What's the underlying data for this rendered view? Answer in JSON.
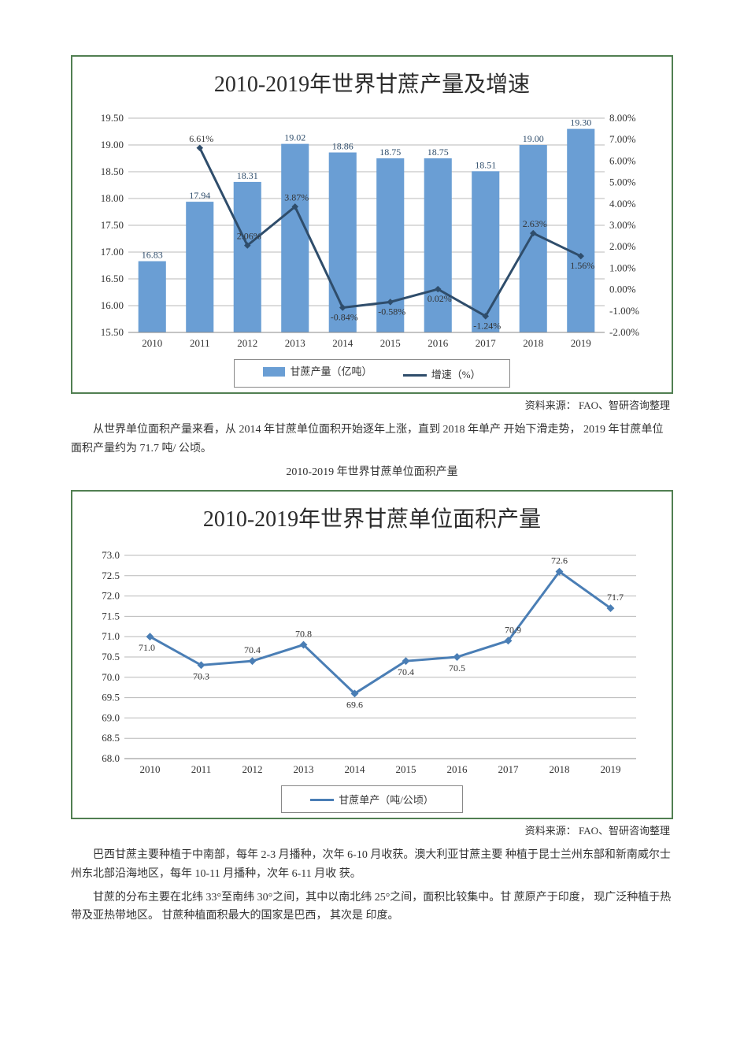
{
  "source_label": "资料来源：",
  "source_value": "FAO、智研咨询整理",
  "chart1": {
    "type": "bar+line",
    "title": "2010-2019年世界甘蔗产量及增速",
    "title_fontsize": 28,
    "border_color": "#517f52",
    "background_color": "#ffffff",
    "grid_color": "#b8b8b8",
    "categories": [
      "2010",
      "2011",
      "2012",
      "2013",
      "2014",
      "2015",
      "2016",
      "2017",
      "2018",
      "2019"
    ],
    "y_left": {
      "min": 15.5,
      "max": 19.5,
      "step": 0.5,
      "label": null,
      "fontsize": 13
    },
    "y_right": {
      "min": -2.0,
      "max": 8.0,
      "step": 1.0,
      "suffix": "%",
      "fontsize": 13
    },
    "bars": {
      "label": "甘蔗产量（亿吨）",
      "color": "#6a9ed4",
      "width": 0.58,
      "values": [
        16.83,
        17.94,
        18.31,
        19.02,
        18.86,
        18.75,
        18.75,
        18.51,
        19.0,
        19.3
      ],
      "data_labels": [
        "16.83",
        "17.94",
        "18.31",
        "19.02",
        "18.86",
        "18.75",
        "18.75",
        "18.51",
        "19.00",
        "19.30"
      ],
      "data_label_color": "#2f4d6b",
      "data_label_fontsize": 12
    },
    "line": {
      "label": "增速（%）",
      "color": "#2f4d6b",
      "width": 3,
      "values": [
        null,
        6.61,
        2.06,
        3.87,
        -0.84,
        -0.58,
        0.02,
        -1.24,
        2.63,
        1.56
      ],
      "data_labels": [
        "",
        "6.61%",
        "2.06%",
        "3.87%",
        "-0.84%",
        "-0.58%",
        "0.02%",
        "-1.24%",
        "2.63%",
        "1.56%"
      ],
      "data_label_fontsize": 12
    },
    "legend": {
      "border_color": "#888888",
      "fontsize": 13
    }
  },
  "para1": "从世界单位面积产量来看，从 2014 年甘蔗单位面积开始逐年上涨，直到  2018 年单产 开始下滑走势， 2019 年甘蔗单位面积产量约为 71.7 吨/ 公顷。",
  "chart2_caption": "2010-2019 年世界甘蔗单位面积产量",
  "chart2": {
    "type": "line",
    "title": "2010-2019年世界甘蔗单位面积产量",
    "title_fontsize": 28,
    "border_color": "#517f52",
    "background_color": "#ffffff",
    "grid_color": "#b8b8b8",
    "categories": [
      "2010",
      "2011",
      "2012",
      "2013",
      "2014",
      "2015",
      "2016",
      "2017",
      "2018",
      "2019"
    ],
    "y": {
      "min": 68.0,
      "max": 73.0,
      "step": 0.5,
      "fontsize": 13
    },
    "series": {
      "label": "甘蔗单产（吨/公顷）",
      "color": "#4a7eb5",
      "width": 3,
      "marker": "diamond",
      "marker_size": 7,
      "values": [
        71.0,
        70.3,
        70.4,
        70.8,
        69.6,
        70.4,
        70.5,
        70.9,
        72.6,
        71.7
      ],
      "data_labels": [
        "71.0",
        "70.3",
        "70.4",
        "70.8",
        "69.6",
        "70.4",
        "70.5",
        "70.9",
        "72.6",
        "71.7"
      ],
      "data_label_fontsize": 12
    },
    "legend": {
      "border_color": "#888888",
      "fontsize": 13
    }
  },
  "para2": "巴西甘蔗主要种植于中南部，每年 2-3 月播种，次年 6-10 月收获。澳大利亚甘蔗主要 种植于昆士兰州东部和新南威尔士州东北部沿海地区，每年 10-11 月播种，次年 6-11 月收 获。",
  "para3": "甘蔗的分布主要在北纬 33°至南纬 30°之间，其中以南北纬 25°之间，面积比较集中。甘 蔗原产于印度， 现广泛种植于热带及亚热带地区。 甘蔗种植面积最大的国家是巴西， 其次是 印度。"
}
